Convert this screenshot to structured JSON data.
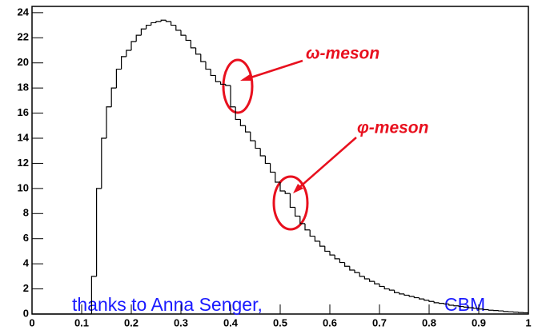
{
  "chart_data": {
    "type": "histogram",
    "bins": [
      0,
      0.01,
      0.02,
      0.03,
      0.04,
      0.05,
      0.06,
      0.07,
      0.08,
      0.09,
      0.1,
      0.11,
      0.12,
      0.13,
      0.14,
      0.15,
      0.16,
      0.17,
      0.18,
      0.19,
      0.2,
      0.21,
      0.22,
      0.23,
      0.24,
      0.25,
      0.26,
      0.27,
      0.28,
      0.29,
      0.3,
      0.31,
      0.32,
      0.33,
      0.34,
      0.35,
      0.36,
      0.37,
      0.38,
      0.39,
      0.4,
      0.41,
      0.42,
      0.43,
      0.44,
      0.45,
      0.46,
      0.47,
      0.48,
      0.49,
      0.5,
      0.51,
      0.52,
      0.53,
      0.54,
      0.55,
      0.56,
      0.57,
      0.58,
      0.59,
      0.6,
      0.61,
      0.62,
      0.63,
      0.64,
      0.65,
      0.66,
      0.67,
      0.68,
      0.69,
      0.7,
      0.71,
      0.72,
      0.73,
      0.74,
      0.75,
      0.76,
      0.77,
      0.78,
      0.79,
      0.8,
      0.81,
      0.82,
      0.83,
      0.84,
      0.85,
      0.86,
      0.87,
      0.88,
      0.89,
      0.9,
      0.91,
      0.92,
      0.93,
      0.94,
      0.95,
      0.96,
      0.97,
      0.98,
      0.99,
      1
    ],
    "values": [
      0,
      0,
      0,
      0,
      0,
      0,
      0,
      0,
      0,
      0,
      0,
      0,
      3,
      10,
      14,
      16.5,
      18,
      19.5,
      20.5,
      21,
      21.7,
      22.2,
      22.7,
      23,
      23.2,
      23.3,
      23.4,
      23.3,
      23,
      22.6,
      22.2,
      21.8,
      21.2,
      20.7,
      20.1,
      19.5,
      19,
      18.5,
      18.3,
      18.2,
      16.5,
      15.5,
      15,
      14.5,
      13.8,
      13.2,
      12.6,
      12,
      11.3,
      10.5,
      9.8,
      9.6,
      8.5,
      7.8,
      7.2,
      6.7,
      6.2,
      5.8,
      5.4,
      5,
      4.7,
      4.4,
      4.1,
      3.8,
      3.5,
      3.3,
      3,
      2.8,
      2.6,
      2.4,
      2.2,
      2,
      1.9,
      1.7,
      1.6,
      1.5,
      1.4,
      1.3,
      1.2,
      1.1,
      1,
      0.9,
      0.85,
      0.8,
      0.7,
      0.65,
      0.6,
      0.55,
      0.5,
      0.45,
      0.4,
      0.35,
      0.3,
      0.28,
      0.25,
      0.2,
      0.18,
      0.15,
      0.12,
      0.1
    ],
    "color": "#000000",
    "xlim": [
      0,
      1
    ],
    "xticks": [
      0,
      0.1,
      0.2,
      0.3,
      0.4,
      0.5,
      0.6,
      0.7,
      0.8,
      0.9,
      1
    ],
    "ylim": [
      0,
      24.5
    ],
    "yticks": [
      0,
      2,
      4,
      6,
      8,
      10,
      12,
      14,
      16,
      18,
      20,
      22,
      24
    ],
    "annotations": [
      "ω-meson",
      "φ-meson",
      "thanks to Anna Senger,",
      "CBM"
    ]
  }
}
